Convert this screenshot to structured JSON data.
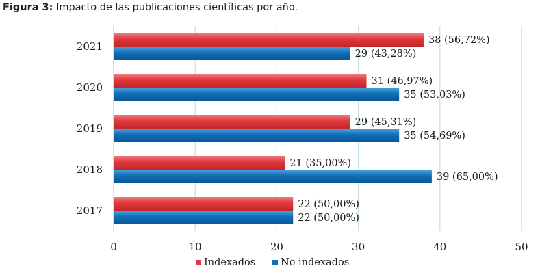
{
  "caption": {
    "label": "Figura 3:",
    "text": "Impacto de las publicaciones científicas por año."
  },
  "chart_data": {
    "type": "bar",
    "orientation": "horizontal",
    "title": "Figura 3: Impacto de las publicaciones científicas por año.",
    "categories": [
      "2021",
      "2020",
      "2019",
      "2018",
      "2017"
    ],
    "series": [
      {
        "name": "Indexados",
        "color": "#e0383b",
        "values": [
          38,
          31,
          29,
          21,
          22
        ],
        "labels": [
          "38 (56,72%)",
          "31 (46,97%)",
          "29 (45,31%)",
          "21 (35,00%)",
          "22 (50,00%)"
        ]
      },
      {
        "name": "No indexados",
        "color": "#0f6fb8",
        "values": [
          29,
          35,
          35,
          39,
          22
        ],
        "labels": [
          "29 (43,28%)",
          "35 (53,03%)",
          "35 (54,69%)",
          "39 (65,00%)",
          "22 (50,00%)"
        ]
      }
    ],
    "xlim": [
      0,
      50
    ],
    "xticks": [
      "0",
      "10",
      "20",
      "30",
      "40",
      "50"
    ],
    "grid": "vertical",
    "legend": "bottom"
  }
}
